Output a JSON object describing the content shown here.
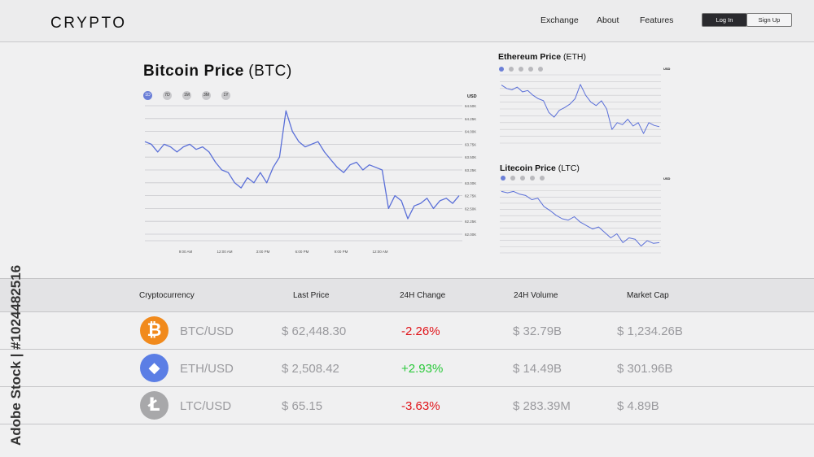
{
  "header": {
    "logo": "CRYPTO",
    "nav": [
      {
        "label": "Exchange"
      },
      {
        "label": "About"
      },
      {
        "label": "Features"
      }
    ],
    "login_label": "Log In",
    "signup_label": "Sign Up"
  },
  "btc": {
    "title_bold": "Bitcoin Price",
    "title_sym": "(BTC)",
    "ranges": [
      "1D",
      "7D",
      "1M",
      "3M",
      "1Y"
    ],
    "active_range": "1D",
    "currency": "USD"
  },
  "eth": {
    "title_bold": "Ethereum Price",
    "title_sym": "(ETH)",
    "currency": "USD"
  },
  "ltc": {
    "title_bold": "Litecoin Price",
    "title_sym": "(LTC)",
    "currency": "USD"
  },
  "chart_data": [
    {
      "type": "line",
      "title": "Bitcoin Price (BTC)",
      "ylabel": "USD",
      "x_ticks": [
        "9:00 AM",
        "12:00 AM",
        "3:00 PM",
        "6:00 PM",
        "9:00 PM",
        "12:00 AM"
      ],
      "y_ticks": [
        "64.50K",
        "64.25K",
        "64.00K",
        "63.75K",
        "63.50K",
        "63.25K",
        "63.00K",
        "62.75K",
        "62.50K",
        "62.25K",
        "62.00K"
      ],
      "ylim": [
        62000,
        64500
      ],
      "grid": true,
      "series": [
        {
          "color": "#5a6fd8",
          "values": [
            63.8,
            63.75,
            63.6,
            63.75,
            63.7,
            63.6,
            63.7,
            63.75,
            63.65,
            63.7,
            63.6,
            63.4,
            63.25,
            63.2,
            63.0,
            62.9,
            63.1,
            63.0,
            63.2,
            63.0,
            63.3,
            63.5,
            64.4,
            64.0,
            63.8,
            63.7,
            63.75,
            63.8,
            63.6,
            63.45,
            63.3,
            63.2,
            63.35,
            63.4,
            63.25,
            63.35,
            63.3,
            63.25,
            62.5,
            62.75,
            62.65,
            62.3,
            62.55,
            62.6,
            62.7,
            62.5,
            62.65,
            62.7,
            62.6,
            62.75
          ]
        }
      ]
    },
    {
      "type": "line",
      "title": "Ethereum Price (ETH)",
      "ylabel": "USD",
      "grid": true,
      "series": [
        {
          "color": "#5a6fd8",
          "values": [
            0.85,
            0.8,
            0.78,
            0.82,
            0.75,
            0.77,
            0.7,
            0.65,
            0.62,
            0.45,
            0.38,
            0.48,
            0.52,
            0.57,
            0.65,
            0.86,
            0.7,
            0.6,
            0.55,
            0.62,
            0.5,
            0.2,
            0.3,
            0.27,
            0.35,
            0.25,
            0.3,
            0.14,
            0.3,
            0.26,
            0.24
          ]
        }
      ]
    },
    {
      "type": "line",
      "title": "Litecoin Price (LTC)",
      "ylabel": "USD",
      "grid": true,
      "series": [
        {
          "color": "#5a6fd8",
          "values": [
            0.9,
            0.88,
            0.9,
            0.86,
            0.84,
            0.78,
            0.8,
            0.68,
            0.62,
            0.55,
            0.5,
            0.48,
            0.53,
            0.45,
            0.4,
            0.35,
            0.38,
            0.3,
            0.22,
            0.28,
            0.15,
            0.22,
            0.2,
            0.1,
            0.18,
            0.14,
            0.15
          ]
        }
      ]
    }
  ],
  "table": {
    "headers": [
      "Cryptocurrency",
      "Last Price",
      "24H Change",
      "24H Volume",
      "Market Cap"
    ],
    "rows": [
      {
        "icon": "bitcoin-icon",
        "glyph": "₿",
        "color": "#f18a1c",
        "pair": "BTC/USD",
        "price": "$ 62,448.30",
        "change": "-2.26%",
        "change_dir": "neg",
        "volume": "$ 32.79B",
        "cap": "$ 1,234.26B"
      },
      {
        "icon": "ethereum-icon",
        "glyph": "◆",
        "color": "#5b7ee5",
        "pair": "ETH/USD",
        "price": "$ 2,508.42",
        "change": "+2.93%",
        "change_dir": "pos",
        "volume": "$ 14.49B",
        "cap": "$ 301.96B"
      },
      {
        "icon": "litecoin-icon",
        "glyph": "Ł",
        "color": "#a8a8aa",
        "pair": "LTC/USD",
        "price": "$ 65.15",
        "change": "-3.63%",
        "change_dir": "neg",
        "volume": "$ 283.39M",
        "cap": "$ 4.89B"
      }
    ]
  },
  "watermark": {
    "side_text": "Adobe Stock | #1024482516"
  }
}
